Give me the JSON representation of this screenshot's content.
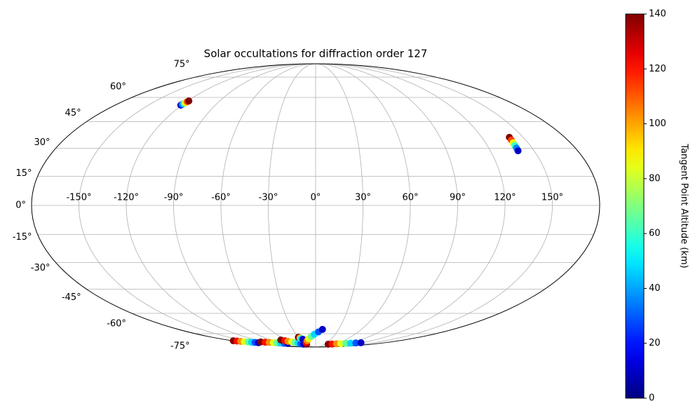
{
  "chart_data": {
    "type": "scatter",
    "projection": "mollweide",
    "title": "Solar occultations for diffraction order 127",
    "xlim": [
      -180,
      180
    ],
    "ylim": [
      -90,
      90
    ],
    "xticks": [
      {
        "value": -150,
        "label": "-150°"
      },
      {
        "value": -120,
        "label": "-120°"
      },
      {
        "value": -90,
        "label": "-90°"
      },
      {
        "value": -60,
        "label": "-60°"
      },
      {
        "value": -30,
        "label": "-30°"
      },
      {
        "value": 0,
        "label": "0°"
      },
      {
        "value": 30,
        "label": "30°"
      },
      {
        "value": 60,
        "label": "60°"
      },
      {
        "value": 90,
        "label": "90°"
      },
      {
        "value": 120,
        "label": "120°"
      },
      {
        "value": 150,
        "label": "150°"
      }
    ],
    "yticks": [
      {
        "value": -75,
        "label": "-75°"
      },
      {
        "value": -60,
        "label": "-60°"
      },
      {
        "value": -45,
        "label": "-45°"
      },
      {
        "value": -30,
        "label": "-30°"
      },
      {
        "value": -15,
        "label": "-15°"
      },
      {
        "value": 0,
        "label": "0°"
      },
      {
        "value": 15,
        "label": "15°"
      },
      {
        "value": 30,
        "label": "30°"
      },
      {
        "value": 45,
        "label": "45°"
      },
      {
        "value": 60,
        "label": "60°"
      },
      {
        "value": 75,
        "label": "75°"
      }
    ],
    "grid": true,
    "colormap": "jet",
    "clim": [
      0,
      140
    ],
    "cticks": [
      0,
      20,
      40,
      60,
      80,
      100,
      120,
      140
    ],
    "colorbar_label": "Tangent Point Altitude (km)",
    "tracks": [
      {
        "lon": [
          -121,
          -120.6,
          -120.2,
          -119.8,
          -119.4,
          -119
        ],
        "lat": [
          55,
          55.5,
          56.1,
          56.6,
          57.2,
          57.7
        ],
        "alt": [
          10,
          36,
          62,
          88,
          114,
          140
        ]
      },
      {
        "lon": [
          140,
          139.8,
          139.6,
          139.4,
          139.2,
          139
        ],
        "lat": [
          36,
          34.5,
          33.0,
          31.6,
          30.1,
          28.6
        ],
        "alt": [
          140,
          114,
          88,
          62,
          36,
          10
        ]
      },
      {
        "lon": [
          -178,
          -174,
          -170,
          -166,
          -161,
          -157,
          -153,
          -149
        ],
        "lat": [
          -81.5,
          -81.8,
          -82.1,
          -82.4,
          -82.7,
          -83.0,
          -83.3,
          -83.6
        ],
        "alt": [
          140,
          121,
          103,
          84,
          66,
          47,
          29,
          10
        ]
      },
      {
        "lon": [
          -131,
          -124,
          -116,
          -109,
          -102,
          -95,
          -87,
          -80
        ],
        "lat": [
          -82.7,
          -83.0,
          -83.2,
          -83.5,
          -83.7,
          -84.0,
          -84.2,
          -84.5
        ],
        "alt": [
          140,
          121,
          103,
          84,
          66,
          47,
          29,
          10
        ]
      },
      {
        "lon": [
          -71,
          -66,
          -62,
          -57,
          -52,
          -47,
          -43,
          -38
        ],
        "lat": [
          -80.7,
          -81.4,
          -82.0,
          -82.7,
          -83.3,
          -84.0,
          -84.6,
          -85.3
        ],
        "alt": [
          140,
          121,
          103,
          84,
          66,
          47,
          29,
          10
        ]
      },
      {
        "lon": [
          -30,
          -28,
          -27,
          -25
        ],
        "lat": [
          -78.1,
          -78.7,
          -79.4,
          -80.0
        ],
        "alt": [
          140,
          97,
          53,
          10
        ]
      },
      {
        "lon": [
          -29,
          -24,
          -18,
          -13,
          -7,
          -2,
          4,
          9
        ],
        "lat": [
          -85.3,
          -83.3,
          -81.4,
          -79.4,
          -77.4,
          -75.4,
          -73.5,
          -71.5
        ],
        "alt": [
          140,
          121,
          103,
          84,
          66,
          47,
          29,
          10
        ]
      },
      {
        "lon": [
          40,
          51,
          62,
          73,
          85,
          96,
          107,
          118
        ],
        "lat": [
          -85.3,
          -85.1,
          -84.8,
          -84.6,
          -84.3,
          -84.1,
          -83.8,
          -83.6
        ],
        "alt": [
          140,
          121,
          103,
          84,
          66,
          47,
          29,
          10
        ]
      }
    ]
  }
}
